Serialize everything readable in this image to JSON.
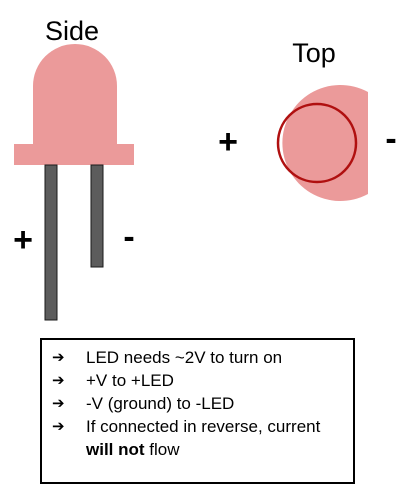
{
  "side_view": {
    "title": "Side",
    "plus_label": "+",
    "minus_label": "-"
  },
  "top_view": {
    "title": "Top",
    "plus_label": "+",
    "minus_label": "-"
  },
  "colors": {
    "led_body": "#eb9a9a",
    "led_inner_ring": "#b01010",
    "lead_fill": "#5c5c5c",
    "lead_stroke": "#1a1a1a",
    "box_border": "#000000"
  },
  "notes": {
    "arrow_symbol": "➔",
    "items": [
      {
        "text": "LED needs ~2V to turn on"
      },
      {
        "text": "+V to +LED"
      },
      {
        "text": "-V (ground) to -LED"
      },
      {
        "text_before": "If connected in reverse, current ",
        "emphasis": "will not",
        "text_after": " flow"
      }
    ]
  }
}
